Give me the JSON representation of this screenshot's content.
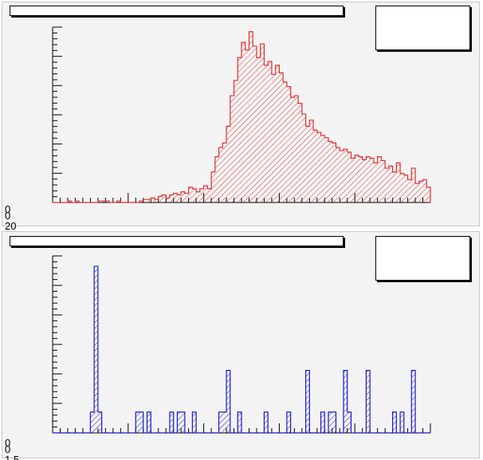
{
  "chart_data": [
    {
      "type": "bar",
      "style": "histogram",
      "title": "",
      "xlabel": "",
      "ylabel": "",
      "line_color": "#e03030",
      "fill_pattern": "hatched",
      "xlim": [
        0,
        100
      ],
      "ylim": [
        0,
        230
      ],
      "y_tick_labels": [
        "0",
        "20"
      ],
      "bins": 100,
      "values": [
        0,
        0,
        0,
        0,
        2,
        0,
        2,
        0,
        0,
        0,
        0,
        0,
        2,
        2,
        2,
        0,
        0,
        2,
        0,
        0,
        0,
        0,
        0,
        2,
        4,
        4,
        6,
        4,
        8,
        10,
        6,
        10,
        12,
        10,
        14,
        12,
        20,
        18,
        14,
        18,
        22,
        18,
        40,
        60,
        72,
        78,
        100,
        140,
        160,
        190,
        210,
        200,
        224,
        205,
        190,
        208,
        180,
        185,
        168,
        180,
        170,
        158,
        152,
        138,
        140,
        130,
        116,
        100,
        108,
        95,
        92,
        88,
        85,
        80,
        78,
        72,
        68,
        70,
        66,
        58,
        62,
        60,
        56,
        60,
        58,
        52,
        60,
        55,
        45,
        48,
        40,
        52,
        38,
        36,
        30,
        45,
        25,
        28,
        30,
        20
      ]
    },
    {
      "type": "bar",
      "style": "histogram",
      "title": "",
      "xlabel": "",
      "ylabel": "",
      "line_color": "#1a1acc",
      "fill_pattern": "hatched",
      "xlim": [
        0,
        100
      ],
      "ylim": [
        0,
        8.5
      ],
      "y_tick_labels": [
        "0",
        "1.5"
      ],
      "bins": 100,
      "values": [
        0,
        0,
        0,
        0,
        0,
        0,
        0,
        0,
        0,
        0,
        1,
        8,
        1,
        0,
        0,
        0,
        0,
        0,
        0,
        0,
        0,
        0,
        1,
        1,
        0,
        1,
        0,
        0,
        0,
        0,
        0,
        1,
        0,
        1,
        1,
        0,
        0,
        1,
        0,
        0,
        0,
        0,
        0,
        0,
        1,
        1,
        3,
        0,
        0,
        1,
        0,
        0,
        0,
        0,
        0,
        0,
        1,
        0,
        0,
        0,
        0,
        0,
        1,
        0,
        0,
        0,
        0,
        3,
        0,
        0,
        0,
        1,
        0,
        1,
        1,
        0,
        0,
        3,
        1,
        0,
        0,
        0,
        0,
        3,
        0,
        0,
        0,
        0,
        0,
        0,
        1,
        0,
        1,
        0,
        0,
        3,
        0,
        0,
        0,
        0
      ]
    }
  ]
}
